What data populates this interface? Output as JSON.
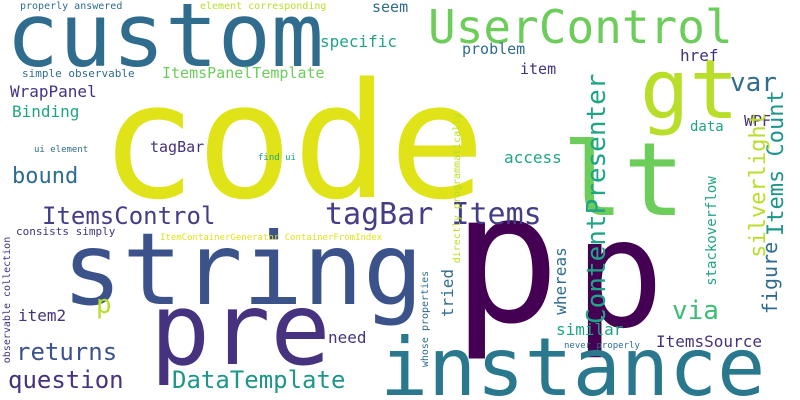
{
  "palette": {
    "yellow": "#dfe318",
    "lime": "#b8de29",
    "lightgreen": "#6ccd5a",
    "green": "#3dbc74",
    "teal": "#20a486",
    "cyan": "#1f968b",
    "blue": "#2a788e",
    "slate": "#2f6c8e",
    "navy": "#3b528b",
    "indigo": "#433e85",
    "purple": "#46327e",
    "darkpurple": "#440154"
  },
  "words": [
    {
      "id": "code",
      "text": "code"
    },
    {
      "id": "string",
      "text": "string"
    },
    {
      "id": "p_big",
      "text": "p"
    },
    {
      "id": "p_second",
      "text": "p"
    },
    {
      "id": "custom",
      "text": "custom"
    },
    {
      "id": "pre",
      "text": "pre"
    },
    {
      "id": "instance",
      "text": "instance"
    },
    {
      "id": "gt",
      "text": "gt"
    },
    {
      "id": "lt",
      "text": "lt"
    },
    {
      "id": "usercontrol",
      "text": "UserControl"
    },
    {
      "id": "tagbar_items",
      "text": "tagBar Items"
    },
    {
      "id": "itemscontrol",
      "text": "ItemsControl"
    },
    {
      "id": "contentpresenter",
      "text": "ContentPresenter"
    },
    {
      "id": "items_count",
      "text": "Items Count"
    },
    {
      "id": "silverlight",
      "text": "silverlight"
    },
    {
      "id": "datatemplate",
      "text": "DataTemplate"
    },
    {
      "id": "question",
      "text": "question"
    },
    {
      "id": "returns",
      "text": "returns"
    },
    {
      "id": "bound",
      "text": "bound"
    },
    {
      "id": "var",
      "text": "var"
    },
    {
      "id": "via",
      "text": "via"
    },
    {
      "id": "figure",
      "text": "figure"
    },
    {
      "id": "p_small",
      "text": "p"
    },
    {
      "id": "itemssource",
      "text": "ItemsSource"
    },
    {
      "id": "itemspaneltemplate",
      "text": "ItemsPanelTemplate"
    },
    {
      "id": "wrappanel",
      "text": "WrapPanel"
    },
    {
      "id": "binding",
      "text": "Binding"
    },
    {
      "id": "specific",
      "text": "specific"
    },
    {
      "id": "problem",
      "text": "problem"
    },
    {
      "id": "seem",
      "text": "seem"
    },
    {
      "id": "href",
      "text": "href"
    },
    {
      "id": "item",
      "text": "item"
    },
    {
      "id": "data",
      "text": "data"
    },
    {
      "id": "wpf",
      "text": "WPF"
    },
    {
      "id": "tagbar",
      "text": "tagBar"
    },
    {
      "id": "access",
      "text": "access"
    },
    {
      "id": "item2",
      "text": "item2"
    },
    {
      "id": "need",
      "text": "need"
    },
    {
      "id": "similar",
      "text": "similar"
    },
    {
      "id": "whereas",
      "text": "whereas"
    },
    {
      "id": "tried",
      "text": "tried"
    },
    {
      "id": "stackoverflow",
      "text": "stackoverflow"
    },
    {
      "id": "directly_programmatically",
      "text": "directly programmatically"
    },
    {
      "id": "whose_properties",
      "text": "whose properties"
    },
    {
      "id": "never_properly",
      "text": "never properly"
    },
    {
      "id": "observable_collection",
      "text": "observable collection"
    },
    {
      "id": "consists_simply",
      "text": "consists simply"
    },
    {
      "id": "ui_element",
      "text": "ui element"
    },
    {
      "id": "find_ui",
      "text": "find ui"
    },
    {
      "id": "itemcontainergenerator",
      "text": "ItemContainerGenerator ContainerFromIndex"
    },
    {
      "id": "simple_observable",
      "text": "simple observable"
    },
    {
      "id": "properly_answered",
      "text": "properly answered"
    },
    {
      "id": "element_corresponding",
      "text": "element corresponding"
    }
  ]
}
